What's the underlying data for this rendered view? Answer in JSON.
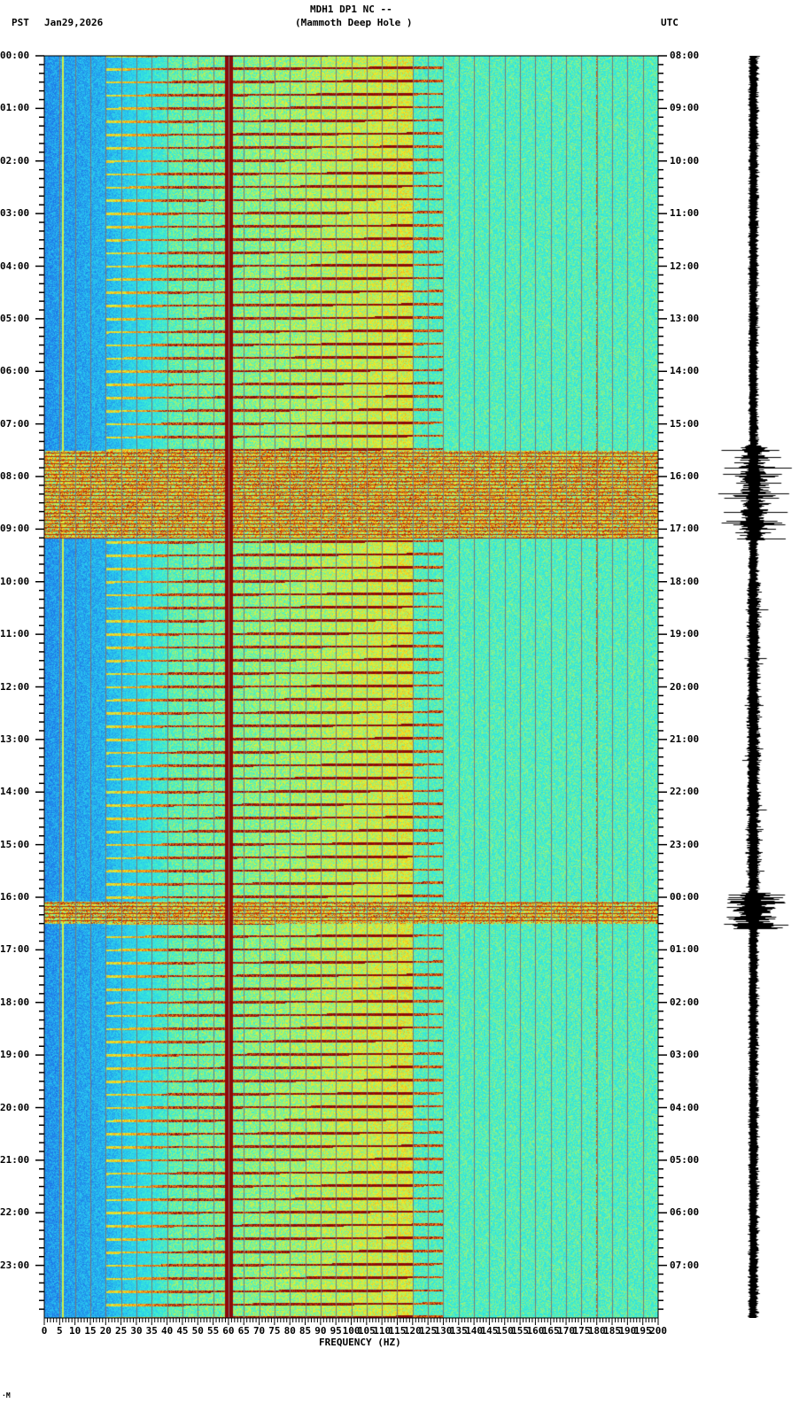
{
  "header": {
    "station_line": "MDH1 DP1 NC --",
    "station_name": "(Mammoth Deep Hole )",
    "left_tz": "PST",
    "date": "Jan29,2026",
    "right_tz": "UTC"
  },
  "footer": {
    "corner_mark": "·M"
  },
  "colors": {
    "low": "#1e64e6",
    "mid_low": "#28c8f0",
    "mid": "#3cf0d2",
    "mid_high": "#f0f028",
    "high": "#f07814",
    "peak": "#8c0a0a",
    "grid": "#7a7a7a",
    "trace": "#000000"
  },
  "chart_data": {
    "type": "heatmap",
    "title": "MDH1 DP1 NC -- (Mammoth Deep Hole )",
    "subtitle": "Jan29,2026",
    "xlabel": "FREQUENCY (HZ)",
    "ylabel_left": "PST",
    "ylabel_right": "UTC",
    "xlim": [
      0,
      200
    ],
    "x_ticks": [
      0,
      5,
      10,
      15,
      20,
      25,
      30,
      35,
      40,
      45,
      50,
      55,
      60,
      65,
      70,
      75,
      80,
      85,
      90,
      95,
      100,
      105,
      110,
      115,
      120,
      125,
      130,
      135,
      140,
      145,
      150,
      155,
      160,
      165,
      170,
      175,
      180,
      185,
      190,
      195,
      200
    ],
    "y_ticks_left": [
      "00:00",
      "01:00",
      "02:00",
      "03:00",
      "04:00",
      "05:00",
      "06:00",
      "07:00",
      "08:00",
      "09:00",
      "10:00",
      "11:00",
      "12:00",
      "13:00",
      "14:00",
      "15:00",
      "16:00",
      "17:00",
      "18:00",
      "19:00",
      "20:00",
      "21:00",
      "22:00",
      "23:00"
    ],
    "y_ticks_right": [
      "08:00",
      "09:00",
      "10:00",
      "11:00",
      "12:00",
      "13:00",
      "14:00",
      "15:00",
      "16:00",
      "17:00",
      "18:00",
      "19:00",
      "20:00",
      "21:00",
      "22:00",
      "23:00",
      "00:00",
      "01:00",
      "02:00",
      "03:00",
      "04:00",
      "05:00",
      "06:00",
      "07:00"
    ],
    "grid": true,
    "grid_spacing_hz": 5,
    "persistent_lines_hz": [
      6,
      60,
      180
    ],
    "noisy_intervals_pst": [
      {
        "start": "07:30",
        "end": "09:10",
        "label": "broadband noise burst"
      },
      {
        "start": "16:05",
        "end": "16:30",
        "label": "broadband noise burst"
      }
    ],
    "recurring_chirps": {
      "interval_min": 15,
      "start_hz": 20,
      "end_hz": 125
    },
    "seismogram_events_pst": [
      "07:30",
      "08:20",
      "08:50",
      "16:05",
      "16:25"
    ]
  },
  "plot": {
    "x_axis_label": "FREQUENCY (HZ)"
  }
}
